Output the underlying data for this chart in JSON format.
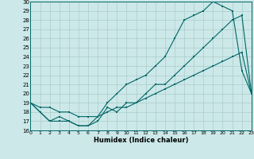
{
  "xlabel": "Humidex (Indice chaleur)",
  "xlim": [
    0,
    23
  ],
  "ylim": [
    16,
    30
  ],
  "xticks": [
    0,
    1,
    2,
    3,
    4,
    5,
    6,
    7,
    8,
    9,
    10,
    11,
    12,
    13,
    14,
    15,
    16,
    17,
    18,
    19,
    20,
    21,
    22,
    23
  ],
  "yticks": [
    16,
    17,
    18,
    19,
    20,
    21,
    22,
    23,
    24,
    25,
    26,
    27,
    28,
    29,
    30
  ],
  "bg_color": "#cce8e8",
  "line_color": "#006666",
  "grid_color": "#aacccc",
  "line1_x": [
    0,
    1,
    2,
    3,
    4,
    5,
    6,
    7,
    8,
    9,
    10,
    11,
    12,
    13,
    14,
    15,
    16,
    17,
    18,
    19,
    20,
    21,
    22,
    23
  ],
  "line1_y": [
    19,
    18,
    17,
    17,
    17,
    16.5,
    16.5,
    17,
    18.5,
    18,
    19,
    19,
    20,
    21,
    21,
    22,
    23,
    24,
    25,
    26,
    27,
    28,
    28.5,
    20
  ],
  "line2_x": [
    0,
    1,
    2,
    3,
    4,
    5,
    6,
    7,
    8,
    9,
    10,
    11,
    12,
    13,
    14,
    15,
    16,
    17,
    18,
    19,
    20,
    21,
    22,
    23
  ],
  "line2_y": [
    19,
    18,
    17,
    17.5,
    17,
    16.5,
    16.5,
    17.5,
    19,
    20,
    21,
    21.5,
    22,
    23,
    24,
    26,
    28,
    28.5,
    29,
    30,
    29.5,
    29,
    22.5,
    20
  ],
  "line3_x": [
    0,
    1,
    2,
    3,
    4,
    5,
    6,
    7,
    8,
    9,
    10,
    11,
    12,
    13,
    14,
    15,
    16,
    17,
    18,
    19,
    20,
    21,
    22,
    23
  ],
  "line3_y": [
    19,
    18.5,
    18.5,
    18,
    18,
    17.5,
    17.5,
    17.5,
    18,
    18.5,
    18.5,
    19,
    19.5,
    20,
    20.5,
    21,
    21.5,
    22,
    22.5,
    23,
    23.5,
    24,
    24.5,
    20
  ]
}
